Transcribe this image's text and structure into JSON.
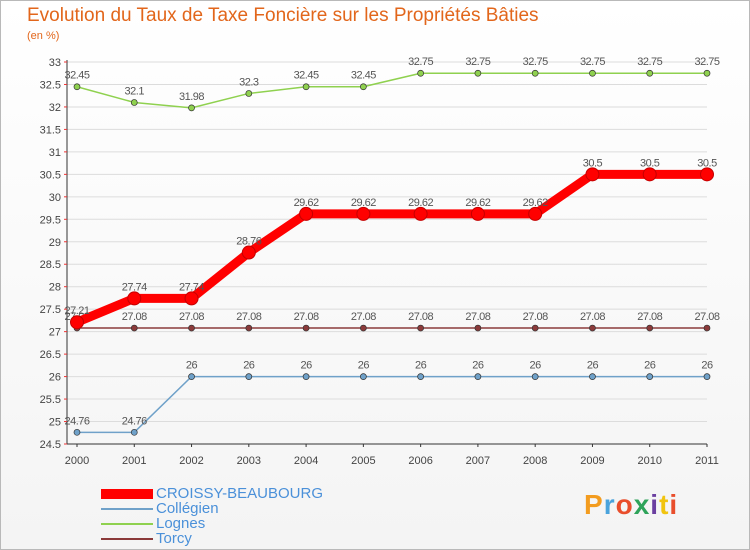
{
  "title": "Evolution du Taux de Taxe Foncière sur les Propriétés Bâties",
  "unit_label": "(en %)",
  "logo": {
    "text": "Proxiti",
    "colors": [
      "#f39c1f",
      "#4aa3dc",
      "#e94e2c",
      "#2ea35a",
      "#6b3fa0",
      "#f1c40f",
      "#e94e2c"
    ]
  },
  "chart_data": {
    "type": "line",
    "title": "Evolution du Taux de Taxe Foncière sur les Propriétés Bâties",
    "ylabel": "(en %)",
    "xlabel": "",
    "x": [
      "2000",
      "2001",
      "2002",
      "2003",
      "2004",
      "2005",
      "2006",
      "2007",
      "2008",
      "2009",
      "2010",
      "2011"
    ],
    "ylim": [
      24.5,
      33
    ],
    "yticks": [
      "24.5",
      "25",
      "25.5",
      "26",
      "26.5",
      "27",
      "27.5",
      "28",
      "28.5",
      "29",
      "29.5",
      "30",
      "30.5",
      "31",
      "31.5",
      "32",
      "32.5",
      "33"
    ],
    "series": [
      {
        "name": "Lognes",
        "color": "#8fd14f",
        "values": [
          32.45,
          32.1,
          31.98,
          32.3,
          32.45,
          32.45,
          32.75,
          32.75,
          32.75,
          32.75,
          32.75,
          32.75
        ],
        "labels": [
          "32.45",
          "32.1",
          "31.98",
          "32.3",
          "32.45",
          "32.45",
          "32.75",
          "32.75",
          "32.75",
          "32.75",
          "32.75",
          "32.75"
        ]
      },
      {
        "name": "Torcy",
        "color": "#8b3a3a",
        "values": [
          27.08,
          27.08,
          27.08,
          27.08,
          27.08,
          27.08,
          27.08,
          27.08,
          27.08,
          27.08,
          27.08,
          27.08
        ],
        "labels": [
          "27.08",
          "27.08",
          "27.08",
          "27.08",
          "27.08",
          "27.08",
          "27.08",
          "27.08",
          "27.08",
          "27.08",
          "27.08",
          "27.08"
        ]
      },
      {
        "name": "Collégien",
        "color": "#6fa1c9",
        "values": [
          24.76,
          24.76,
          26,
          26,
          26,
          26,
          26,
          26,
          26,
          26,
          26,
          26
        ],
        "labels": [
          "24.76",
          "24.76",
          "26",
          "26",
          "26",
          "26",
          "26",
          "26",
          "26",
          "26",
          "26",
          "26"
        ]
      },
      {
        "name": "CROISSY-BEAUBOURG",
        "color": "#ff0000",
        "values": [
          27.21,
          27.74,
          27.74,
          28.76,
          29.62,
          29.62,
          29.62,
          29.62,
          29.62,
          30.5,
          30.5,
          30.5
        ],
        "labels": [
          "27.21",
          "27.74",
          "27.74",
          "28.76",
          "29.62",
          "29.62",
          "29.62",
          "29.62",
          "29.62",
          "30.5",
          "30.5",
          "30.5"
        ]
      }
    ],
    "legend": {
      "position": "bottom-left",
      "items": [
        {
          "name": "CROISSY-BEAUBOURG",
          "color": "#ff0000"
        },
        {
          "name": "Collégien",
          "color": "#6fa1c9"
        },
        {
          "name": "Lognes",
          "color": "#8fd14f"
        },
        {
          "name": "Torcy",
          "color": "#8b3a3a"
        }
      ]
    }
  }
}
